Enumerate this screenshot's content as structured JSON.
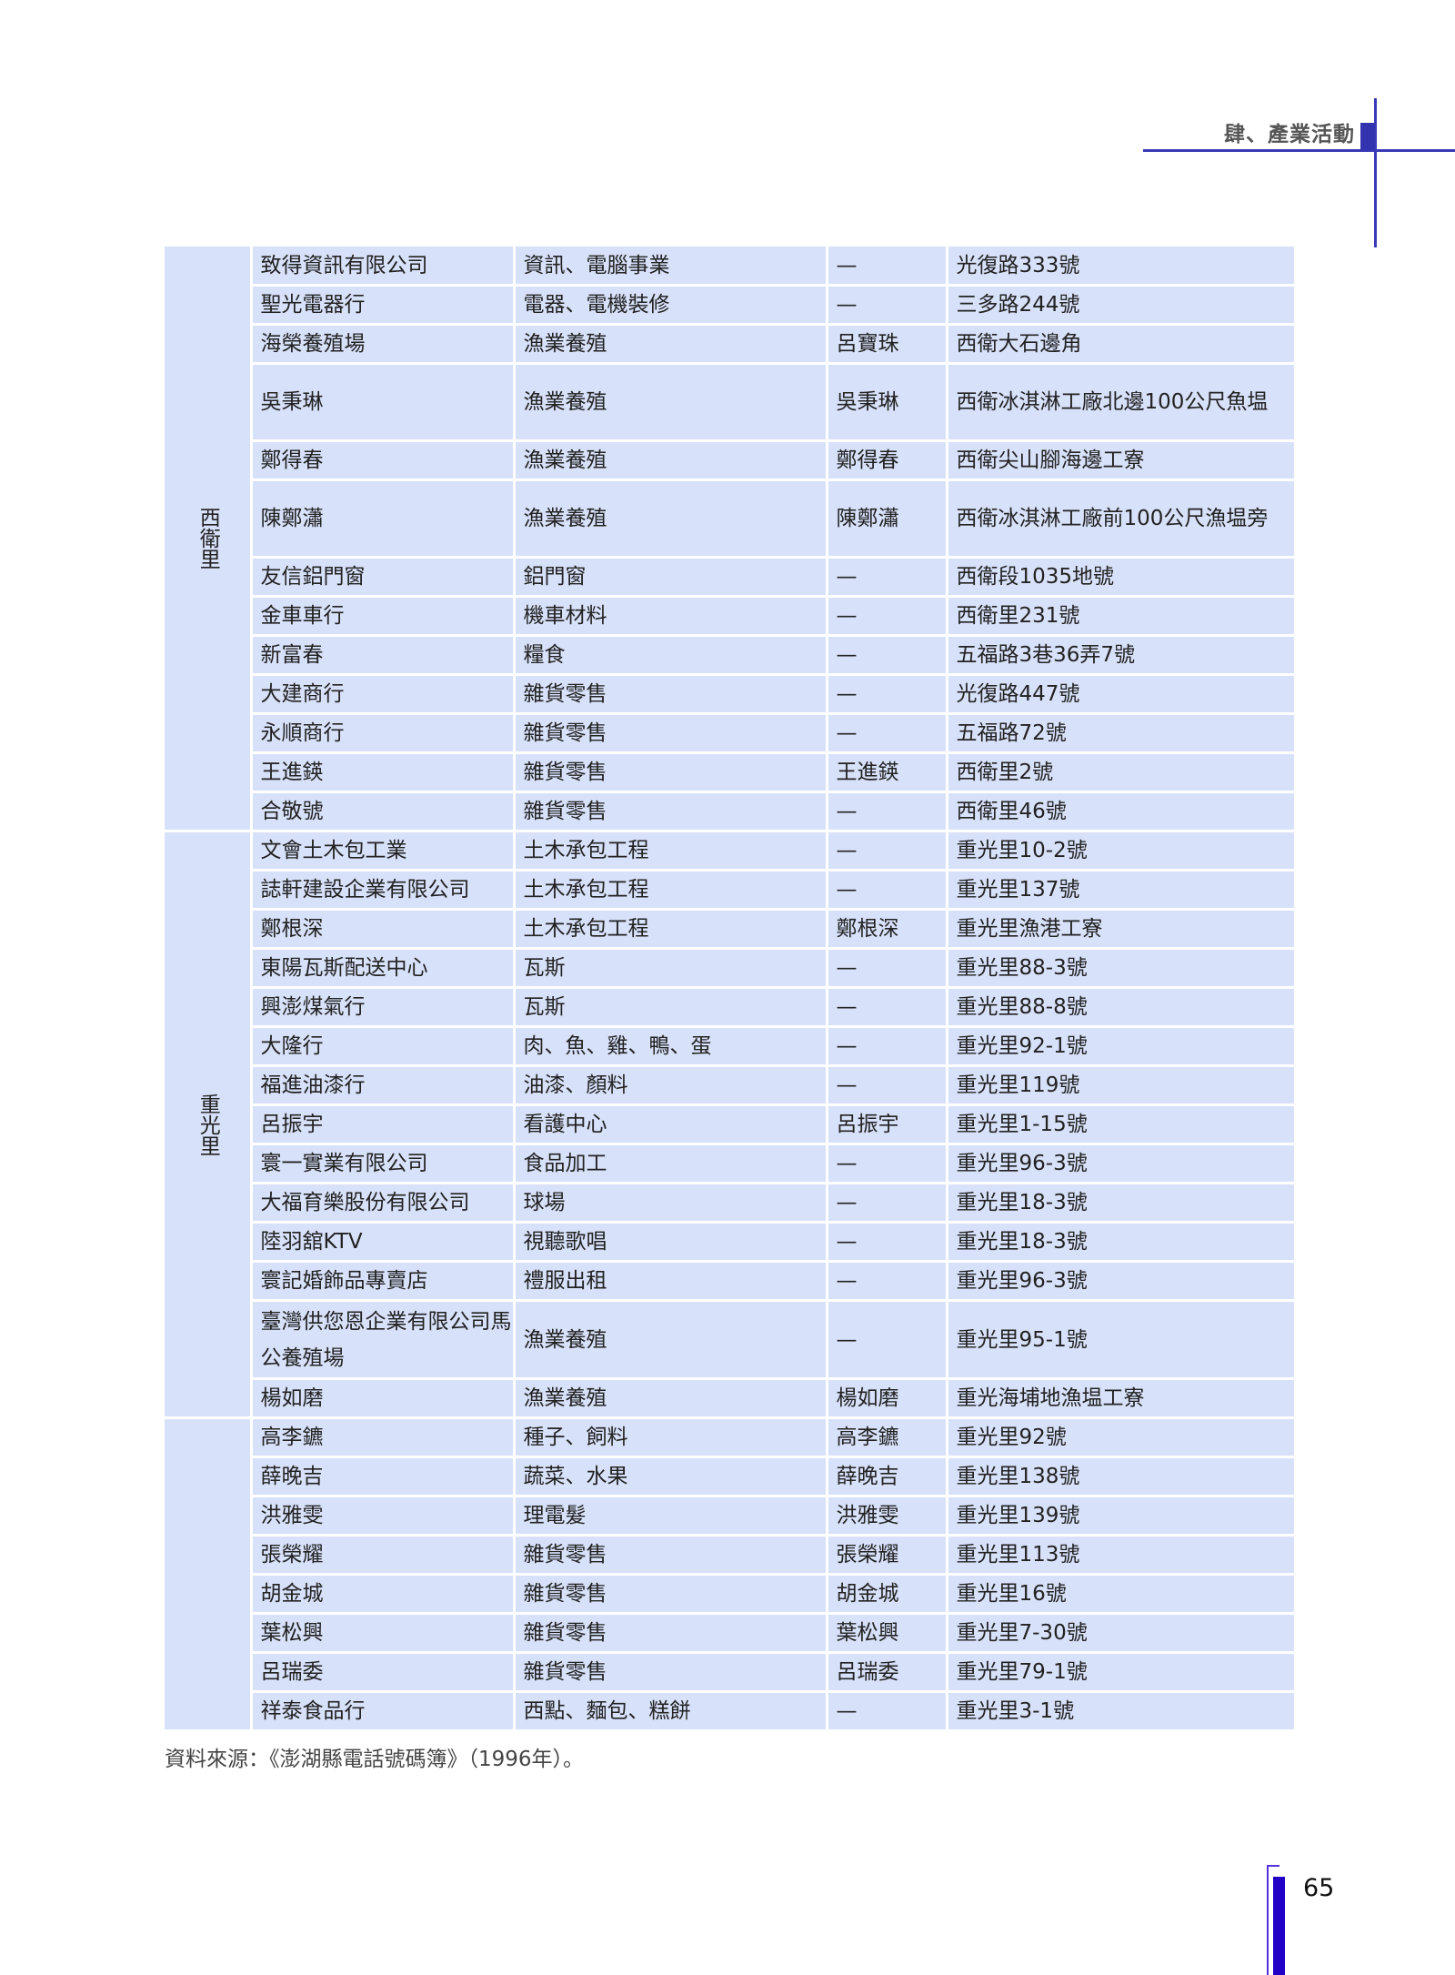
{
  "header": {
    "chapter": "肆、產業活動",
    "accent_color": "#3a3ab8"
  },
  "table": {
    "groups": [
      {
        "label": "西衛里",
        "rows": [
          [
            "致得資訊有限公司",
            "資訊、電腦事業",
            "—",
            "光復路333號"
          ],
          [
            "聖光電器行",
            "電器、電機裝修",
            "—",
            "三多路244號"
          ],
          [
            "海榮養殖場",
            "漁業養殖",
            "呂寶珠",
            "西衛大石邊角"
          ],
          [
            "吳秉琳",
            "漁業養殖",
            "吳秉琳",
            "西衛冰淇淋工廠北邊100公尺魚塭"
          ],
          [
            "鄭得春",
            "漁業養殖",
            "鄭得春",
            "西衛尖山腳海邊工寮"
          ],
          [
            "陳鄭瀟",
            "漁業養殖",
            "陳鄭瀟",
            "西衛冰淇淋工廠前100公尺漁塭旁"
          ],
          [
            "友信鋁門窗",
            "鋁門窗",
            "—",
            "西衛段1035地號"
          ],
          [
            "金車車行",
            "機車材料",
            "—",
            "西衛里231號"
          ],
          [
            "新富春",
            "糧食",
            "—",
            "五福路3巷36弄7號"
          ],
          [
            "大建商行",
            "雜貨零售",
            "—",
            "光復路447號"
          ],
          [
            "永順商行",
            "雜貨零售",
            "—",
            "五福路72號"
          ],
          [
            "王進鍈",
            "雜貨零售",
            "王進鍈",
            "西衛里2號"
          ],
          [
            "合敬號",
            "雜貨零售",
            "—",
            "西衛里46號"
          ]
        ]
      },
      {
        "label": "重光里",
        "rows": [
          [
            "文會土木包工業",
            "土木承包工程",
            "—",
            "重光里10-2號"
          ],
          [
            "誌軒建設企業有限公司",
            "土木承包工程",
            "—",
            "重光里137號"
          ],
          [
            "鄭根深",
            "土木承包工程",
            "鄭根深",
            "重光里漁港工寮"
          ],
          [
            "東陽瓦斯配送中心",
            "瓦斯",
            "—",
            "重光里88-3號"
          ],
          [
            "興澎煤氣行",
            "瓦斯",
            "—",
            "重光里88-8號"
          ],
          [
            "大隆行",
            "肉、魚、雞、鴨、蛋",
            "—",
            "重光里92-1號"
          ],
          [
            "福進油漆行",
            "油漆、顏料",
            "—",
            "重光里119號"
          ],
          [
            "呂振宇",
            "看護中心",
            "呂振宇",
            "重光里1-15號"
          ],
          [
            "寰一實業有限公司",
            "食品加工",
            "—",
            "重光里96-3號"
          ],
          [
            "大福育樂股份有限公司",
            "球場",
            "—",
            "重光里18-3號"
          ],
          [
            "陸羽舘KTV",
            "視聽歌唱",
            "—",
            "重光里18-3號"
          ],
          [
            "寰記婚飾品專賣店",
            "禮服出租",
            "—",
            "重光里96-3號"
          ],
          [
            "臺灣供您恩企業有限公司馬公養殖場",
            "漁業養殖",
            "—",
            "重光里95-1號"
          ],
          [
            "楊如磨",
            "漁業養殖",
            "楊如磨",
            "重光海埔地漁塭工寮"
          ]
        ]
      },
      {
        "label": "",
        "rows": [
          [
            "高李鑣",
            "種子、飼料",
            "高李鑣",
            "重光里92號"
          ],
          [
            "薛晚吉",
            "蔬菜、水果",
            "薛晚吉",
            "重光里138號"
          ],
          [
            "洪雅雯",
            "理電髮",
            "洪雅雯",
            "重光里139號"
          ],
          [
            "張榮耀",
            "雜貨零售",
            "張榮耀",
            "重光里113號"
          ],
          [
            "胡金城",
            "雜貨零售",
            "胡金城",
            "重光里16號"
          ],
          [
            "葉松興",
            "雜貨零售",
            "葉松興",
            "重光里7-30號"
          ],
          [
            "呂瑞委",
            "雜貨零售",
            "呂瑞委",
            "重光里79-1號"
          ],
          [
            "祥泰食品行",
            "西點、麵包、糕餅",
            "—",
            "重光里3-1號"
          ]
        ]
      }
    ],
    "cell_color": "#d7e1f9"
  },
  "footer": {
    "source": "資料來源：《澎湖縣電話號碼簿》（1996年）。",
    "page_number": "65",
    "page_bar_color": "#2200c8"
  }
}
